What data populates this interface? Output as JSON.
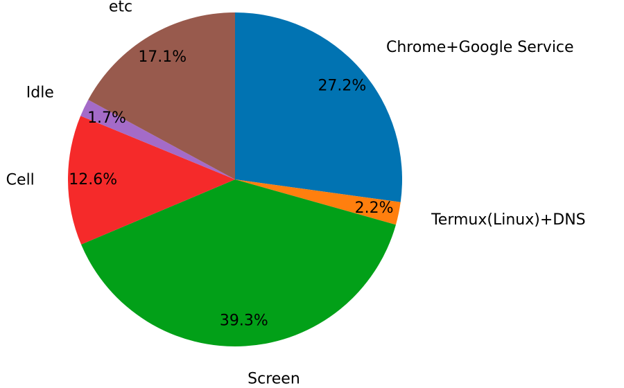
{
  "chart_data": {
    "type": "pie",
    "categories": [
      "Chrome+Google Service",
      "Termux(Linux)+DNS",
      "Screen",
      "Cell",
      "Idle",
      "etc"
    ],
    "values": [
      27.2,
      2.2,
      39.3,
      12.6,
      1.7,
      17.1
    ],
    "value_labels": [
      "27.2%",
      "2.2%",
      "39.3%",
      "12.6%",
      "1.7%",
      "17.1%"
    ],
    "colors": [
      "#0173b2",
      "#ff7f0e",
      "#02a018",
      "#f52a2a",
      "#a46bc8",
      "#985a4d"
    ]
  }
}
